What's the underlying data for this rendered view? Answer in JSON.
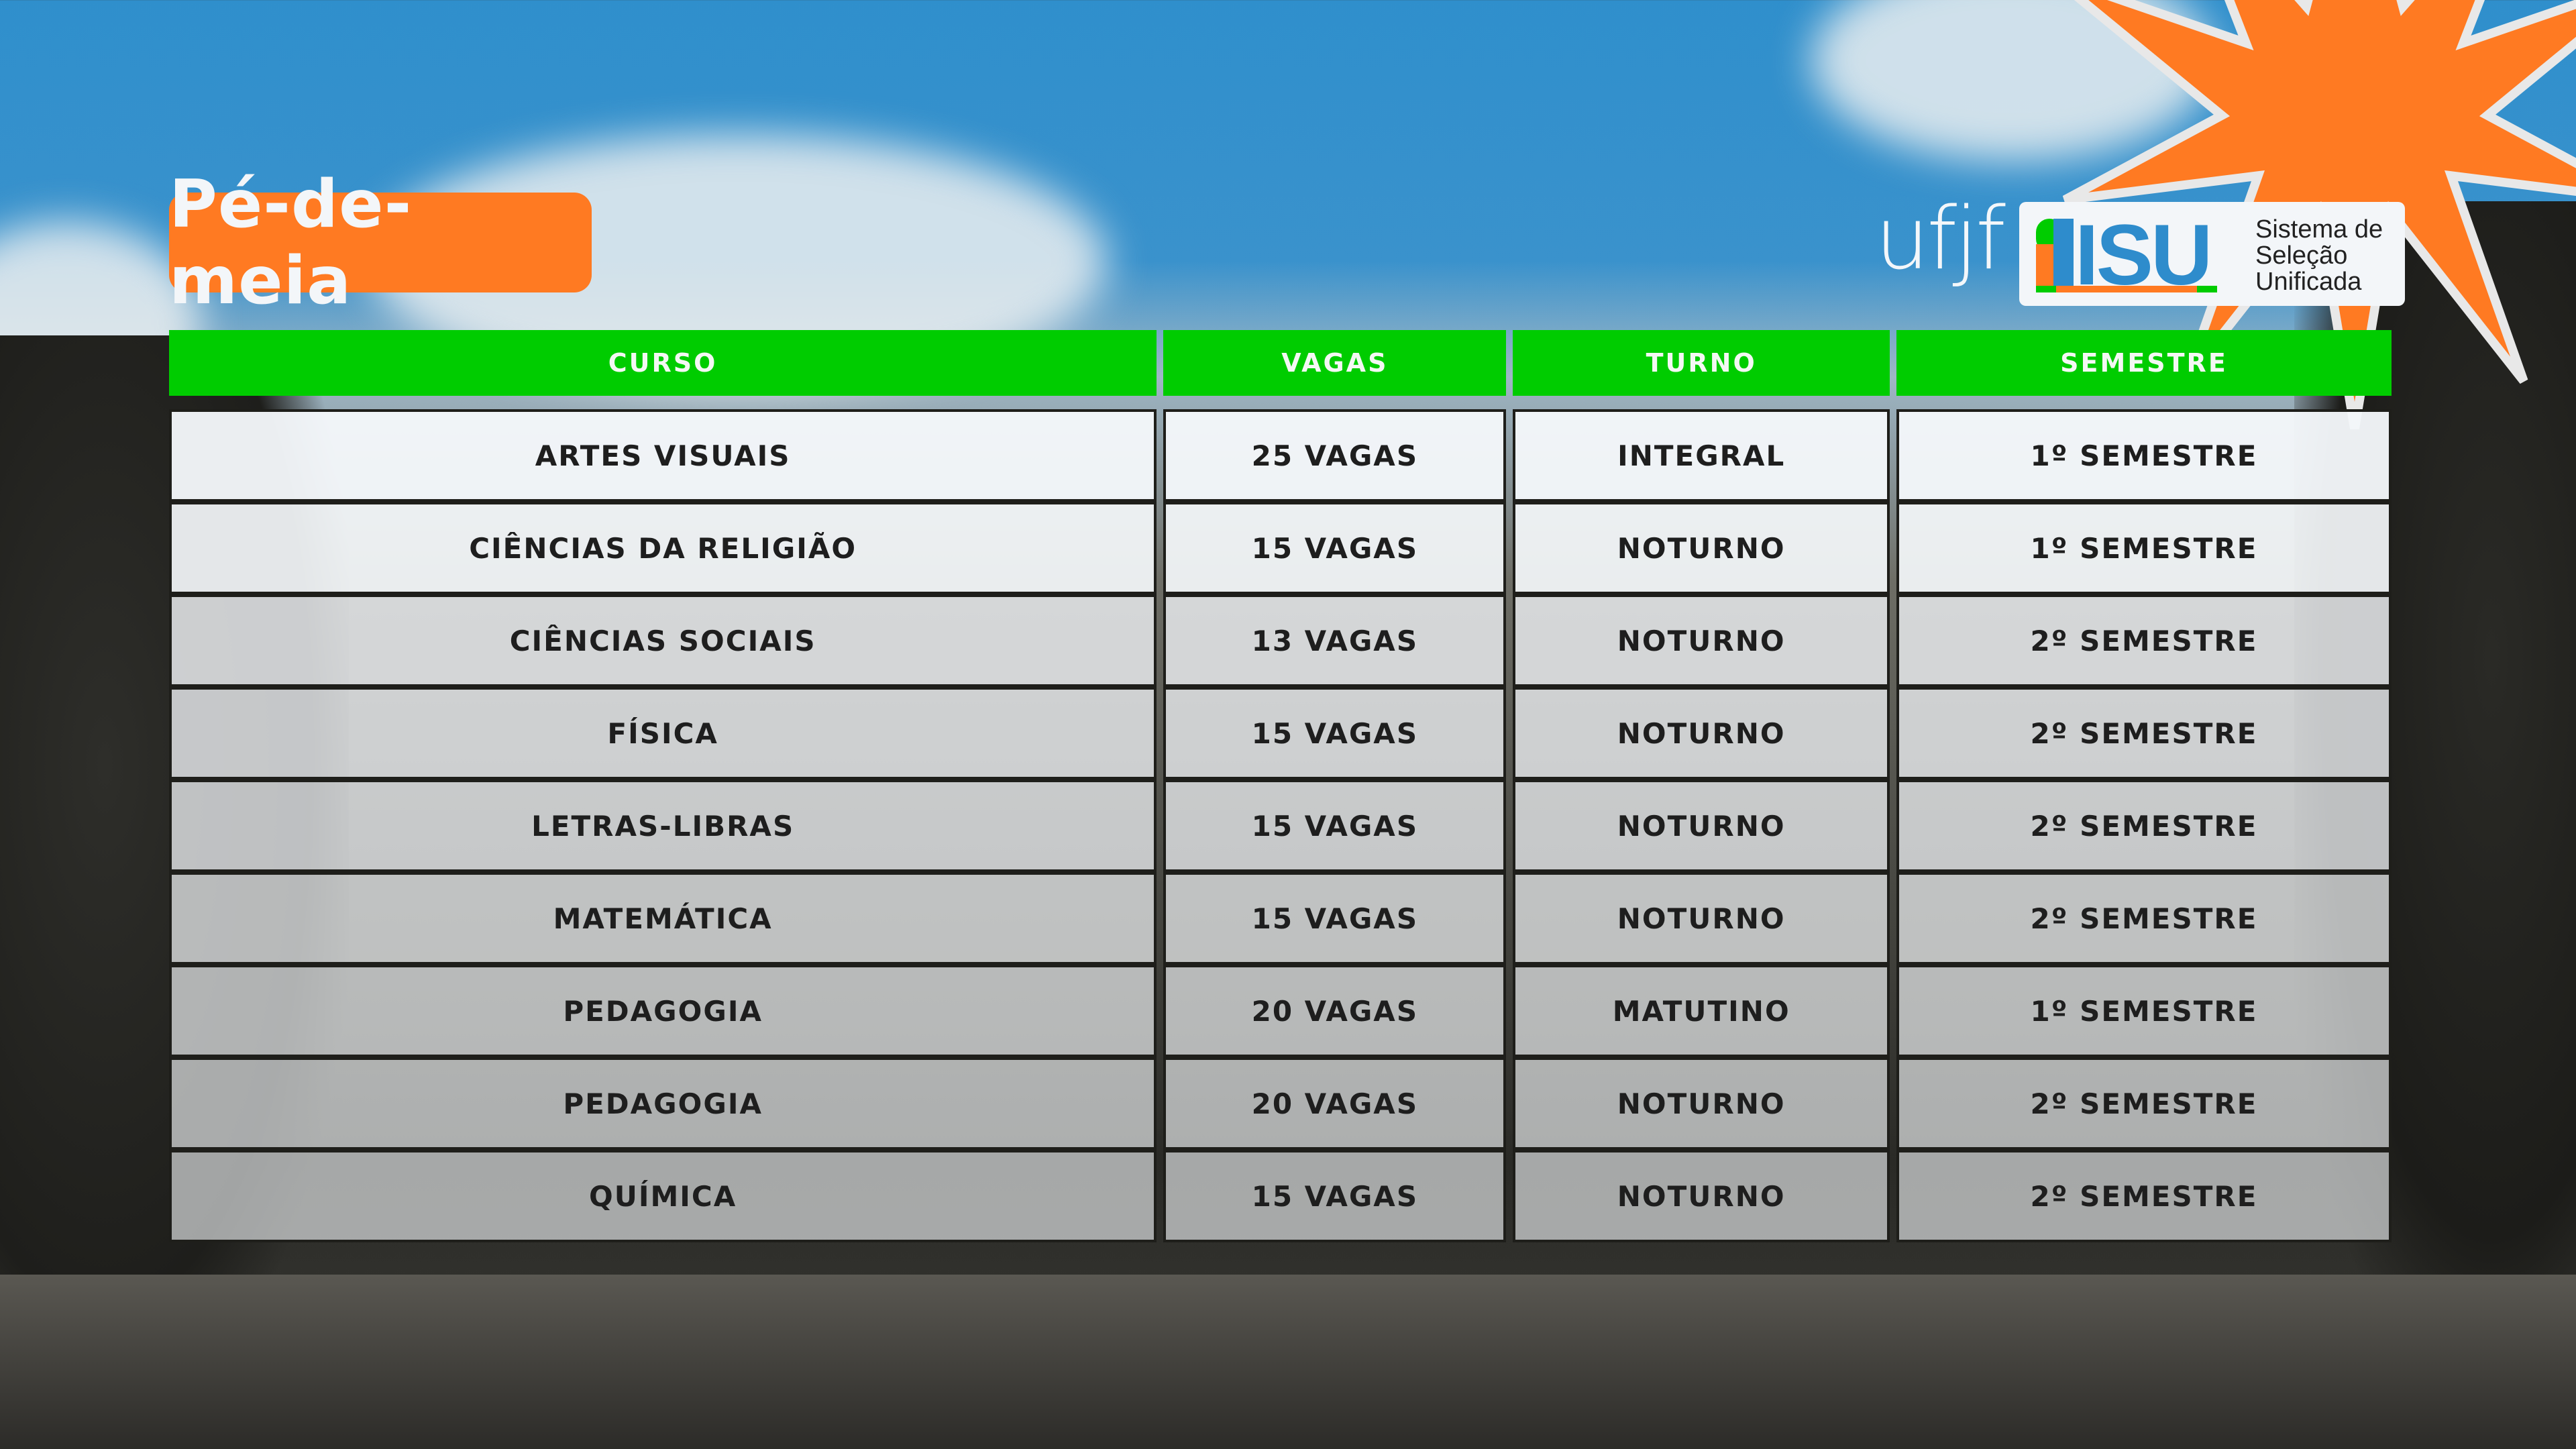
{
  "title": "Pé-de-meia",
  "logos": {
    "ufjf": "ufjf",
    "sisu": "SISU",
    "sisu_subtitle": [
      "Sistema de",
      "Seleção",
      "Unificada"
    ]
  },
  "colors": {
    "accent_orange": "#ff7a22",
    "header_green": "#00cc00",
    "sisu_blue": "#2e8ccc"
  },
  "table": {
    "headers": [
      "CURSO",
      "VAGAS",
      "TURNO",
      "SEMESTRE"
    ],
    "rows": [
      [
        "ARTES VISUAIS",
        "25 VAGAS",
        "INTEGRAL",
        "1º SEMESTRE"
      ],
      [
        "CIÊNCIAS DA RELIGIÃO",
        "15 VAGAS",
        "NOTURNO",
        "1º SEMESTRE"
      ],
      [
        "CIÊNCIAS SOCIAIS",
        "13 VAGAS",
        "NOTURNO",
        "2º SEMESTRE"
      ],
      [
        "FÍSICA",
        "15 VAGAS",
        "NOTURNO",
        "2º SEMESTRE"
      ],
      [
        "LETRAS-LIBRAS",
        "15 VAGAS",
        "NOTURNO",
        "2º SEMESTRE"
      ],
      [
        "MATEMÁTICA",
        "15 VAGAS",
        "NOTURNO",
        "2º SEMESTRE"
      ],
      [
        "PEDAGOGIA",
        "20 VAGAS",
        "MATUTINO",
        "1º SEMESTRE"
      ],
      [
        "PEDAGOGIA",
        "20 VAGAS",
        "NOTURNO",
        "2º SEMESTRE"
      ],
      [
        "QUÍMICA",
        "15 VAGAS",
        "NOTURNO",
        "2º SEMESTRE"
      ]
    ]
  }
}
